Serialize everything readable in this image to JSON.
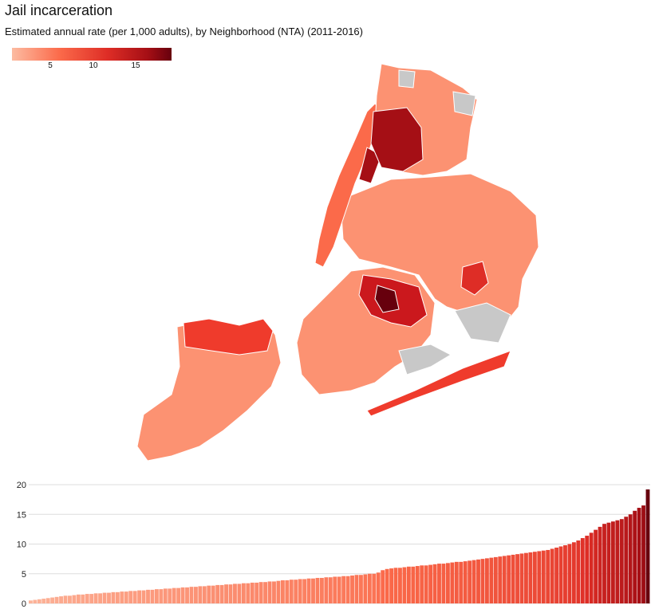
{
  "header": {
    "title": "Jail incarceration",
    "subtitle": "Estimated annual rate (per 1,000 adults), by Neighborhood (NTA) (2011-2016)"
  },
  "legend": {
    "min": 0,
    "max": 19,
    "ticks": [
      "5",
      "10",
      "15"
    ],
    "colors": [
      "#fcbba1",
      "#fb6a4a",
      "#de2d26",
      "#a50f15",
      "#67000d"
    ]
  },
  "map": {
    "boroughs": [
      "Staten Island",
      "Brooklyn",
      "Queens",
      "Manhattan",
      "Bronx"
    ],
    "no_data_color": "#c8c8c8",
    "outline_color": "#ffffff"
  },
  "chart_data": {
    "type": "bar",
    "title": "",
    "xlabel": "",
    "ylabel": "",
    "ylim": [
      0,
      20
    ],
    "yticks": [
      0,
      5,
      10,
      15,
      20
    ],
    "grid": true,
    "values": [
      0.5,
      0.6,
      0.7,
      0.8,
      0.9,
      1.0,
      1.1,
      1.2,
      1.3,
      1.3,
      1.4,
      1.5,
      1.5,
      1.6,
      1.6,
      1.7,
      1.7,
      1.8,
      1.8,
      1.9,
      1.9,
      2.0,
      2.0,
      2.1,
      2.1,
      2.2,
      2.2,
      2.3,
      2.3,
      2.4,
      2.4,
      2.5,
      2.5,
      2.6,
      2.6,
      2.7,
      2.7,
      2.8,
      2.8,
      2.9,
      2.9,
      3.0,
      3.0,
      3.1,
      3.1,
      3.2,
      3.2,
      3.3,
      3.3,
      3.4,
      3.4,
      3.5,
      3.5,
      3.6,
      3.6,
      3.7,
      3.7,
      3.8,
      3.9,
      3.9,
      4.0,
      4.0,
      4.1,
      4.1,
      4.2,
      4.2,
      4.3,
      4.3,
      4.4,
      4.4,
      4.5,
      4.5,
      4.6,
      4.6,
      4.7,
      4.8,
      4.8,
      4.9,
      5.0,
      5.0,
      5.2,
      5.6,
      5.8,
      5.9,
      6.0,
      6.0,
      6.1,
      6.2,
      6.2,
      6.3,
      6.4,
      6.4,
      6.5,
      6.6,
      6.7,
      6.7,
      6.8,
      6.9,
      7.0,
      7.0,
      7.1,
      7.2,
      7.3,
      7.4,
      7.5,
      7.6,
      7.7,
      7.8,
      7.9,
      8.0,
      8.1,
      8.2,
      8.3,
      8.4,
      8.5,
      8.6,
      8.7,
      8.8,
      8.9,
      9.0,
      9.2,
      9.4,
      9.6,
      9.8,
      10.0,
      10.3,
      10.6,
      11.0,
      11.4,
      11.9,
      12.4,
      12.9,
      13.4,
      13.6,
      13.8,
      14.0,
      14.2,
      14.6,
      15.0,
      15.6,
      16.1,
      16.5,
      19.2
    ]
  }
}
